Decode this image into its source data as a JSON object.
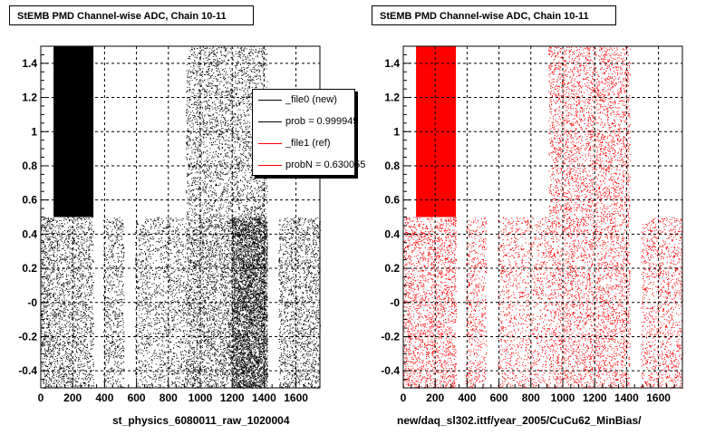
{
  "chart_data": [
    {
      "type": "scatter",
      "title": "StEMB PMD Channel-wise ADC, Chain 10-11",
      "xlabel": "st_physics_6080011_raw_1020004",
      "ylabel": "",
      "xlim": [
        0,
        1750
      ],
      "ylim": [
        -0.5,
        1.5
      ],
      "grid": true,
      "color": "#000000",
      "xticks": [
        "0",
        "200",
        "400",
        "600",
        "800",
        "1000",
        "1200",
        "1400",
        "1600"
      ],
      "yticks": [
        "-0.4",
        "-0.2",
        "-0",
        "0.2",
        "0.4",
        "0.6",
        "0.8",
        "1",
        "1.2",
        "1.4"
      ],
      "bands": [
        {
          "x": [
            0,
            80
          ],
          "y": [
            -0.5,
            0.5
          ],
          "density": 0.45
        },
        {
          "x": [
            80,
            330
          ],
          "y": [
            -0.5,
            0.5
          ],
          "density": 0.35
        },
        {
          "x": [
            80,
            330
          ],
          "y": [
            0.5,
            1.5
          ],
          "density": 1.0
        },
        {
          "x": [
            390,
            520
          ],
          "y": [
            -0.5,
            0.5
          ],
          "density": 0.3
        },
        {
          "x": [
            590,
            910
          ],
          "y": [
            -0.5,
            0.5
          ],
          "density": 0.25
        },
        {
          "x": [
            910,
            1420
          ],
          "y": [
            -0.5,
            0.5
          ],
          "density": 0.45
        },
        {
          "x": [
            910,
            1420
          ],
          "y": [
            0.5,
            1.5
          ],
          "density": 0.3
        },
        {
          "x": [
            1200,
            1420
          ],
          "y": [
            -0.5,
            0.5
          ],
          "density": 0.75
        },
        {
          "x": [
            1490,
            1750
          ],
          "y": [
            -0.5,
            0.5
          ],
          "density": 0.35
        }
      ],
      "legend": {
        "placement": "top-right",
        "entries": [
          {
            "label": "_file0 (new)",
            "color": "#000000"
          },
          {
            "label": "prob = 0.999945",
            "color": "#000000"
          },
          {
            "label": "_file1 (ref)",
            "color": "#ff0000"
          },
          {
            "label": "probN = 0.630055",
            "color": "#ff0000"
          }
        ]
      }
    },
    {
      "type": "scatter",
      "title": "StEMB PMD Channel-wise ADC, Chain 10-11",
      "xlabel": "new/daq_sl302.ittf/year_2005/CuCu62_MinBias/",
      "ylabel": "",
      "xlim": [
        0,
        1750
      ],
      "ylim": [
        -0.5,
        1.5
      ],
      "grid": true,
      "color": "#ff0000",
      "xticks": [
        "0",
        "200",
        "400",
        "600",
        "800",
        "1000",
        "1200",
        "1400",
        "1600"
      ],
      "yticks": [
        "-0.4",
        "-0.2",
        "-0",
        "0.2",
        "0.4",
        "0.6",
        "0.8",
        "1",
        "1.2",
        "1.4"
      ],
      "bands": [
        {
          "x": [
            0,
            80
          ],
          "y": [
            -0.5,
            0.5
          ],
          "density": 0.35
        },
        {
          "x": [
            80,
            330
          ],
          "y": [
            -0.5,
            0.5
          ],
          "density": 0.35
        },
        {
          "x": [
            80,
            330
          ],
          "y": [
            0.5,
            1.5
          ],
          "density": 1.0
        },
        {
          "x": [
            390,
            520
          ],
          "y": [
            -0.5,
            0.5
          ],
          "density": 0.25
        },
        {
          "x": [
            590,
            910
          ],
          "y": [
            -0.5,
            0.5
          ],
          "density": 0.2
        },
        {
          "x": [
            910,
            1420
          ],
          "y": [
            -0.5,
            0.5
          ],
          "density": 0.3
        },
        {
          "x": [
            910,
            1420
          ],
          "y": [
            0.5,
            1.5
          ],
          "density": 0.3
        },
        {
          "x": [
            1490,
            1750
          ],
          "y": [
            -0.5,
            0.5
          ],
          "density": 0.25
        }
      ]
    }
  ]
}
